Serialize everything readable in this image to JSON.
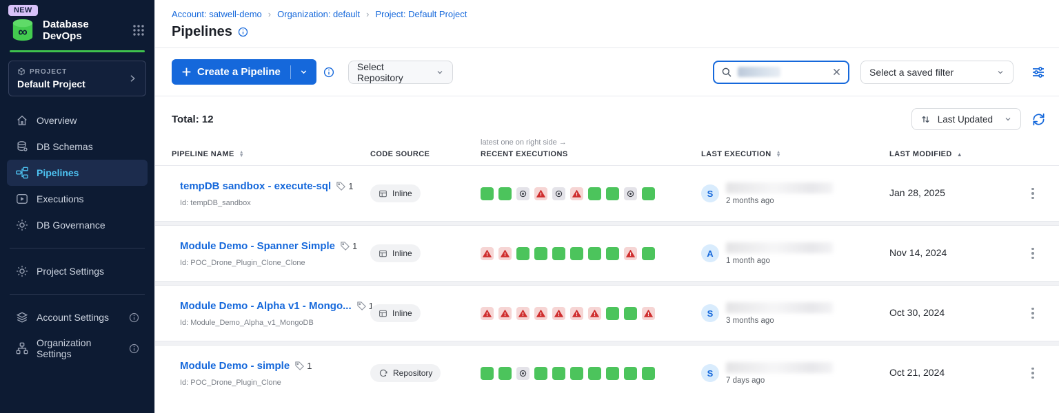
{
  "app": {
    "name": "Database DevOps",
    "badge": "NEW"
  },
  "colors": {
    "accent_blue": "#1568db",
    "brand_green": "#3fc24d",
    "sidebar_bg": "#0d1b33",
    "active_nav": "#4ec3f2",
    "exec_success": "#4cc45c",
    "exec_failed_bg": "#f6d5d4",
    "exec_failed_icon": "#cf2e2e",
    "exec_skipped_bg": "#e4e3e9"
  },
  "sidebar": {
    "project_label": "PROJECT",
    "project_name": "Default Project",
    "nav_main": [
      {
        "id": "overview",
        "label": "Overview",
        "icon": "home-icon",
        "active": false
      },
      {
        "id": "db-schemas",
        "label": "DB Schemas",
        "icon": "database-icon",
        "active": false
      },
      {
        "id": "pipelines",
        "label": "Pipelines",
        "icon": "pipeline-icon",
        "active": true
      },
      {
        "id": "executions",
        "label": "Executions",
        "icon": "play-square-icon",
        "active": false
      },
      {
        "id": "db-governance",
        "label": "DB Governance",
        "icon": "gear-icon",
        "active": false
      }
    ],
    "nav_secondary": [
      {
        "id": "project-settings",
        "label": "Project Settings",
        "icon": "gear-icon",
        "active": false
      }
    ],
    "nav_bottom": [
      {
        "id": "account-settings",
        "label": "Account Settings",
        "icon": "layers-icon",
        "info": true
      },
      {
        "id": "organization-settings",
        "label": "Organization Settings",
        "icon": "org-chart-icon",
        "info": true
      }
    ]
  },
  "breadcrumb": [
    {
      "label": "Account: satwell-demo"
    },
    {
      "label": "Organization: default"
    },
    {
      "label": "Project: Default Project"
    }
  ],
  "page": {
    "title": "Pipelines"
  },
  "toolbar": {
    "create_label": "Create a Pipeline",
    "repo_select": "Select Repository",
    "filter_select": "Select a saved filter",
    "search_value_redacted": true
  },
  "list": {
    "total": "Total: 12",
    "sort": "Last Updated"
  },
  "table": {
    "headers": {
      "name": "Pipeline Name",
      "source": "Code Source",
      "executions": "Recent Executions",
      "last_execution": "Last Execution",
      "last_modified": "Last Modified"
    },
    "executions_note": "latest one on right side →",
    "rows": [
      {
        "name": "tempDB sandbox - execute-sql",
        "tag_count": "1",
        "id": "Id: tempDB_sandbox",
        "source": "Inline",
        "source_icon": "inline-code-icon",
        "executions": [
          "success",
          "success",
          "skipped",
          "failed",
          "skipped",
          "failed",
          "success",
          "success",
          "skipped",
          "success"
        ],
        "avatar_initial": "S",
        "executor_name_redacted": true,
        "last_execution_time": "2 months ago",
        "last_modified": "Jan 28, 2025"
      },
      {
        "name": "Module Demo - Spanner Simple",
        "tag_count": "1",
        "id": "Id: POC_Drone_Plugin_Clone_Clone",
        "source": "Inline",
        "source_icon": "inline-code-icon",
        "executions": [
          "failed",
          "failed",
          "success",
          "success",
          "success",
          "success",
          "success",
          "success",
          "failed",
          "success"
        ],
        "avatar_initial": "A",
        "executor_name_redacted": true,
        "last_execution_time": "1 month ago",
        "last_modified": "Nov 14, 2024"
      },
      {
        "name": "Module Demo - Alpha v1 - Mongo...",
        "tag_count": "1",
        "id": "Id: Module_Demo_Alpha_v1_MongoDB",
        "source": "Inline",
        "source_icon": "inline-code-icon",
        "executions": [
          "failed",
          "failed",
          "failed",
          "failed",
          "failed",
          "failed",
          "failed",
          "success",
          "success",
          "failed"
        ],
        "avatar_initial": "S",
        "executor_name_redacted": true,
        "last_execution_time": "3 months ago",
        "last_modified": "Oct 30, 2024"
      },
      {
        "name": "Module Demo - simple",
        "tag_count": "1",
        "id": "Id: POC_Drone_Plugin_Clone",
        "source": "Repository",
        "source_icon": "repository-icon",
        "executions": [
          "success",
          "success",
          "skipped",
          "success",
          "success",
          "success",
          "success",
          "success",
          "success",
          "success"
        ],
        "avatar_initial": "S",
        "executor_name_redacted": true,
        "last_execution_time": "7 days ago",
        "last_modified": "Oct 21, 2024"
      }
    ]
  }
}
